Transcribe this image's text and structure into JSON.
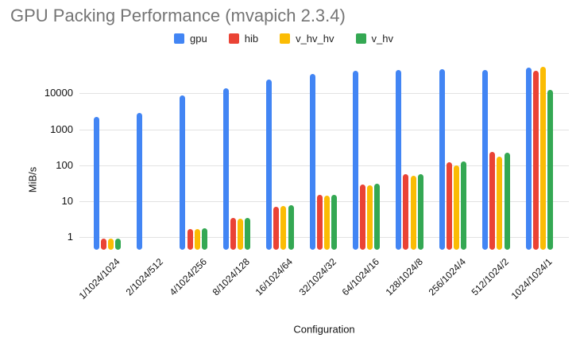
{
  "chart_data": {
    "type": "bar",
    "title": "GPU Packing Performance (mvapich 2.3.4)",
    "xlabel": "Configuration",
    "ylabel": "MiB/s",
    "y_scale": "log",
    "y_ticks": [
      "1",
      "10",
      "100",
      "1000",
      "10000"
    ],
    "ylim": [
      0.48,
      56000
    ],
    "grid": true,
    "legend_position": "top",
    "categories": [
      "1/1024/1024",
      "2/1024/512",
      "4/1024/256",
      "8/1024/128",
      "16/1024/64",
      "32/1024/32",
      "64/1024/16",
      "128/1024/8",
      "256/1024/4",
      "512/1024/2",
      "1024/1024/1"
    ],
    "series": [
      {
        "name": "gpu",
        "color": "#4285F4",
        "values": [
          2200,
          2800,
          8800,
          13500,
          24000,
          35000,
          42000,
          44000,
          47000,
          44000,
          52000
        ]
      },
      {
        "name": "hib",
        "color": "#EA4335",
        "values": [
          0.9,
          null,
          1.7,
          3.4,
          7.2,
          15,
          30,
          58,
          120,
          240,
          42000
        ]
      },
      {
        "name": "v_hv_hv",
        "color": "#FBBC04",
        "values": [
          0.9,
          null,
          1.7,
          3.3,
          7.3,
          14,
          28,
          50,
          97,
          170,
          53500
        ]
      },
      {
        "name": "v_hv",
        "color": "#34A853",
        "values": [
          0.9,
          null,
          1.8,
          3.5,
          7.6,
          15,
          31,
          58,
          125,
          225,
          12600
        ]
      }
    ]
  }
}
